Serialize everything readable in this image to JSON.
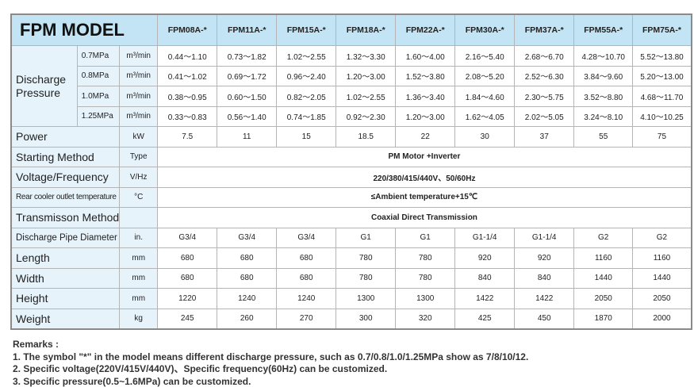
{
  "header": {
    "title": "FPM MODEL"
  },
  "models": [
    "FPM08A-*",
    "FPM11A-*",
    "FPM15A-*",
    "FPM18A-*",
    "FPM22A-*",
    "FPM30A-*",
    "FPM37A-*",
    "FPM55A-*",
    "FPM75A-*"
  ],
  "discharge": {
    "label": "Discharge Pressure",
    "rows": [
      {
        "pressure": "0.7MPa",
        "unit": "m³/min",
        "values": [
          "0.44～1.10",
          "0.73～1.82",
          "1.02～2.55",
          "1.32～3.30",
          "1.60～4.00",
          "2.16～5.40",
          "2.68～6.70",
          "4.28～10.70",
          "5.52～13.80"
        ]
      },
      {
        "pressure": "0.8MPa",
        "unit": "m³/min",
        "values": [
          "0.41～1.02",
          "0.69～1.72",
          "0.96～2.40",
          "1.20～3.00",
          "1.52～3.80",
          "2.08～5.20",
          "2.52～6.30",
          "3.84～9.60",
          "5.20～13.00"
        ]
      },
      {
        "pressure": "1.0MPa",
        "unit": "m³/min",
        "values": [
          "0.38～0.95",
          "0.60～1.50",
          "0.82～2.05",
          "1.02～2.55",
          "1.36～3.40",
          "1.84～4.60",
          "2.30～5.75",
          "3.52～8.80",
          "4.68～11.70"
        ]
      },
      {
        "pressure": "1.25MPa",
        "unit": "m³/min",
        "values": [
          "0.33～0.83",
          "0.56～1.40",
          "0.74～1.85",
          "0.92～2.30",
          "1.20～3.00",
          "1.62～4.05",
          "2.02～5.05",
          "3.24～8.10",
          "4.10～10.25"
        ]
      }
    ]
  },
  "rows": [
    {
      "label": "Power",
      "unit": "kW",
      "values": [
        "7.5",
        "11",
        "15",
        "18.5",
        "22",
        "30",
        "37",
        "55",
        "75"
      ]
    },
    {
      "label": "Starting Method",
      "unit": "Type",
      "span": "PM Motor +Inverter"
    },
    {
      "label": "Voltage/Frequency",
      "unit": "V/Hz",
      "span": "220/380/415/440V、50/60Hz"
    },
    {
      "label": "Rear cooler outlet temperature",
      "unit": "°C",
      "span": "≤Ambient temperature+15℃",
      "small": true
    },
    {
      "label": "Transmisson Method",
      "unit": "",
      "span": "Coaxial Direct Transmission"
    },
    {
      "label": "Discharge Pipe Diameter",
      "unit": "in.",
      "values": [
        "G3/4",
        "G3/4",
        "G3/4",
        "G1",
        "G1",
        "G1-1/4",
        "G1-1/4",
        "G2",
        "G2"
      ],
      "mid": true
    },
    {
      "label": "Length",
      "unit": "mm",
      "values": [
        "680",
        "680",
        "680",
        "780",
        "780",
        "920",
        "920",
        "1160",
        "1160"
      ]
    },
    {
      "label": "Width",
      "unit": "mm",
      "values": [
        "680",
        "680",
        "680",
        "780",
        "780",
        "840",
        "840",
        "1440",
        "1440"
      ]
    },
    {
      "label": "Height",
      "unit": "mm",
      "values": [
        "1220",
        "1240",
        "1240",
        "1300",
        "1300",
        "1422",
        "1422",
        "2050",
        "2050"
      ]
    },
    {
      "label": "Weight",
      "unit": "kg",
      "values": [
        "245",
        "260",
        "270",
        "300",
        "320",
        "425",
        "450",
        "1870",
        "2000"
      ]
    }
  ],
  "remarks": {
    "title": "Remarks :",
    "items": [
      "1. The symbol \"*\" in the model means different discharge pressure, such as 0.7/0.8/1.0/1.25MPa show as 7/8/10/12.",
      "2. Specific voltage(220V/415V/440V)、Specific frequency(60Hz) can be customized.",
      "3. Specific pressure(0.5~1.6MPa) can be customized."
    ]
  }
}
